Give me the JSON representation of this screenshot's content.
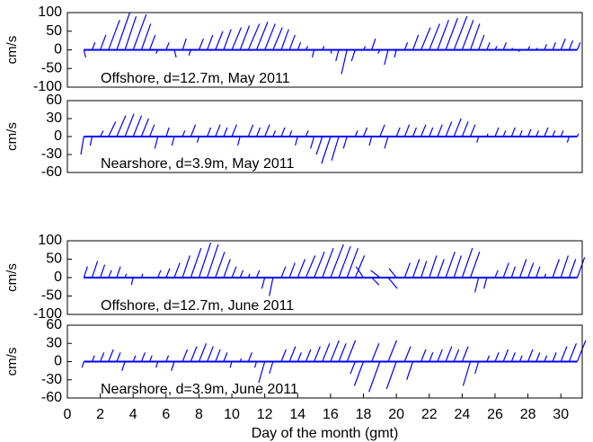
{
  "chart_data": [
    {
      "type": "stick",
      "label": "Offshore, d=12.7m, May 2011",
      "ylabel": "cm/s",
      "color": "#0000ff",
      "xlim": [
        0,
        31.3
      ],
      "ylim": [
        -100,
        100
      ],
      "yticks": [
        100,
        50,
        0,
        -50,
        -100
      ],
      "x": [
        1,
        1.5,
        2,
        2.5,
        3,
        3.5,
        4,
        4.5,
        5,
        5.5,
        6,
        6.5,
        7,
        7.5,
        8,
        8.5,
        9,
        9.5,
        10,
        10.5,
        11,
        11.5,
        12,
        12.5,
        13,
        13.5,
        14,
        14.5,
        15,
        15.5,
        16,
        16.5,
        17,
        17.5,
        18,
        18.5,
        19,
        19.5,
        20,
        20.5,
        21,
        21.5,
        22,
        22.5,
        23,
        23.5,
        24,
        24.5,
        25,
        25.5,
        26,
        26.5,
        27,
        27.5,
        28,
        28.5,
        29,
        29.5,
        30,
        30.5,
        31
      ],
      "values": [
        -20,
        20,
        40,
        80,
        100,
        90,
        95,
        70,
        40,
        -10,
        20,
        -20,
        30,
        -15,
        30,
        40,
        50,
        55,
        60,
        65,
        70,
        75,
        70,
        60,
        55,
        40,
        20,
        10,
        -20,
        10,
        -10,
        -30,
        -65,
        -30,
        10,
        30,
        -10,
        -40,
        -20,
        20,
        40,
        60,
        70,
        80,
        85,
        90,
        80,
        70,
        40,
        20,
        10,
        20,
        5,
        -5,
        10,
        5,
        15,
        20,
        30,
        25,
        20
      ],
      "u": [
        5,
        8,
        15,
        30,
        35,
        30,
        35,
        25,
        15,
        -5,
        8,
        5,
        10,
        -5,
        12,
        15,
        20,
        20,
        25,
        25,
        30,
        30,
        28,
        25,
        20,
        15,
        8,
        5,
        -5,
        5,
        3,
        -8,
        -15,
        -10,
        5,
        10,
        -5,
        -10,
        -5,
        8,
        15,
        25,
        28,
        30,
        32,
        35,
        30,
        25,
        15,
        8,
        5,
        8,
        3,
        -3,
        5,
        3,
        6,
        8,
        12,
        10,
        8
      ]
    },
    {
      "type": "stick",
      "label": "Nearshore, d=3.9m, May 2011",
      "ylabel": "cm/s",
      "color": "#0000ff",
      "xlim": [
        0,
        31.3
      ],
      "ylim": [
        -60,
        60
      ],
      "yticks": [
        60,
        30,
        0,
        -30,
        -60
      ],
      "x": [
        1,
        1.5,
        2,
        2.5,
        3,
        3.5,
        4,
        4.5,
        5,
        5.5,
        6,
        6.5,
        7,
        7.5,
        8,
        8.5,
        9,
        9.5,
        10,
        10.5,
        11,
        11.5,
        12,
        12.5,
        13,
        13.5,
        14,
        14.5,
        15,
        15.5,
        16,
        16.5,
        17,
        17.5,
        18,
        18.5,
        19,
        19.5,
        20,
        20.5,
        21,
        21.5,
        22,
        22.5,
        23,
        23.5,
        24,
        24.5,
        25,
        25.5,
        26,
        26.5,
        27,
        27.5,
        28,
        28.5,
        29,
        29.5,
        30,
        30.5,
        31
      ],
      "values": [
        -30,
        -15,
        10,
        25,
        35,
        38,
        35,
        30,
        20,
        -20,
        15,
        -15,
        10,
        20,
        -10,
        15,
        20,
        15,
        20,
        -15,
        20,
        15,
        20,
        10,
        15,
        10,
        -15,
        10,
        -20,
        -30,
        -45,
        -40,
        -20,
        10,
        15,
        -15,
        20,
        -20,
        15,
        20,
        15,
        20,
        15,
        20,
        25,
        30,
        25,
        20,
        -10,
        5,
        15,
        10,
        15,
        10,
        12,
        10,
        15,
        10,
        10,
        -10,
        5
      ],
      "u": [
        -5,
        -3,
        5,
        12,
        15,
        15,
        14,
        12,
        8,
        -5,
        5,
        -4,
        4,
        8,
        -3,
        6,
        8,
        6,
        8,
        -4,
        8,
        6,
        8,
        4,
        6,
        4,
        -4,
        4,
        -6,
        -10,
        -15,
        -12,
        -6,
        4,
        6,
        -4,
        8,
        -6,
        6,
        8,
        6,
        8,
        6,
        8,
        10,
        12,
        10,
        8,
        -3,
        2,
        6,
        4,
        6,
        4,
        5,
        4,
        6,
        4,
        4,
        -3,
        2
      ]
    },
    {
      "type": "stick",
      "label": "Offshore, d=12.7m, June 2011",
      "ylabel": "cm/s",
      "color": "#0000ff",
      "xlim": [
        0,
        31.3
      ],
      "ylim": [
        -100,
        100
      ],
      "yticks": [
        100,
        50,
        0,
        -50,
        -100
      ],
      "x": [
        1,
        1.5,
        2,
        2.5,
        3,
        3.5,
        4,
        4.5,
        5,
        5.5,
        6,
        6.5,
        7,
        7.5,
        8,
        8.5,
        9,
        9.5,
        10,
        10.5,
        11,
        11.5,
        12,
        12.5,
        13,
        13.5,
        14,
        14.5,
        15,
        15.5,
        16,
        16.5,
        17,
        17.5,
        18,
        18.5,
        19,
        19.5,
        20,
        20.5,
        21,
        21.5,
        22,
        22.5,
        23,
        23.5,
        24,
        24.5,
        25,
        25.5,
        26,
        26.5,
        27,
        27.5,
        28,
        28.5,
        29,
        29.5,
        30,
        30.5,
        31
      ],
      "values": [
        30,
        45,
        35,
        20,
        30,
        10,
        -20,
        10,
        0,
        20,
        25,
        40,
        60,
        80,
        95,
        90,
        70,
        50,
        30,
        20,
        10,
        20,
        -30,
        -50,
        30,
        40,
        50,
        60,
        70,
        80,
        90,
        85,
        80,
        60,
        30,
        -20,
        20,
        -30,
        25,
        40,
        50,
        45,
        60,
        50,
        70,
        60,
        80,
        70,
        -40,
        -30,
        20,
        40,
        30,
        50,
        40,
        30,
        10,
        50,
        60,
        50,
        55
      ],
      "u": [
        10,
        15,
        12,
        8,
        10,
        4,
        -5,
        4,
        2,
        8,
        10,
        15,
        20,
        28,
        32,
        30,
        25,
        18,
        12,
        8,
        4,
        8,
        -8,
        -10,
        12,
        15,
        20,
        25,
        28,
        30,
        35,
        32,
        30,
        25,
        -20,
        20,
        -25,
        25,
        -20,
        15,
        18,
        15,
        20,
        18,
        25,
        20,
        28,
        25,
        -10,
        -8,
        8,
        15,
        10,
        18,
        15,
        10,
        4,
        18,
        20,
        18,
        20
      ]
    },
    {
      "type": "stick",
      "label": "Nearshore, d=3.9m, June 2011",
      "ylabel": "cm/s",
      "color": "#0000ff",
      "xlim": [
        0,
        31.3
      ],
      "ylim": [
        -60,
        60
      ],
      "yticks": [
        60,
        30,
        0,
        -30,
        -60
      ],
      "xticks": [
        0,
        2,
        4,
        6,
        8,
        10,
        12,
        14,
        16,
        18,
        20,
        22,
        24,
        26,
        28,
        30
      ],
      "xlabel": "Day of the month (gmt)",
      "x": [
        1,
        1.5,
        2,
        2.5,
        3,
        3.5,
        4,
        4.5,
        5,
        5.5,
        6,
        6.5,
        7,
        7.5,
        8,
        8.5,
        9,
        9.5,
        10,
        10.5,
        11,
        11.5,
        12,
        12.5,
        13,
        13.5,
        14,
        14.5,
        15,
        15.5,
        16,
        16.5,
        17,
        17.5,
        18,
        18.5,
        19,
        19.5,
        20,
        20.5,
        21,
        21.5,
        22,
        22.5,
        23,
        23.5,
        24,
        24.5,
        25,
        25.5,
        26,
        26.5,
        27,
        27.5,
        28,
        28.5,
        29,
        29.5,
        30,
        30.5,
        31
      ],
      "values": [
        -10,
        10,
        15,
        20,
        15,
        -15,
        10,
        15,
        10,
        -10,
        10,
        -15,
        20,
        25,
        30,
        25,
        20,
        15,
        -10,
        5,
        15,
        -10,
        -35,
        -20,
        20,
        25,
        15,
        20,
        25,
        30,
        35,
        30,
        35,
        -20,
        -40,
        30,
        -50,
        35,
        -45,
        25,
        -30,
        20,
        15,
        20,
        25,
        20,
        25,
        -40,
        -20,
        10,
        15,
        20,
        15,
        10,
        20,
        15,
        10,
        15,
        25,
        30,
        35
      ],
      "u": [
        -3,
        4,
        6,
        8,
        6,
        -5,
        4,
        6,
        4,
        -3,
        4,
        -5,
        8,
        10,
        12,
        10,
        8,
        6,
        -3,
        2,
        6,
        -3,
        -10,
        -6,
        8,
        10,
        6,
        8,
        10,
        12,
        14,
        12,
        14,
        -8,
        -15,
        12,
        -18,
        14,
        -16,
        10,
        -10,
        8,
        6,
        8,
        10,
        8,
        10,
        -12,
        -6,
        4,
        6,
        8,
        6,
        4,
        8,
        6,
        4,
        6,
        10,
        12,
        14
      ]
    }
  ]
}
